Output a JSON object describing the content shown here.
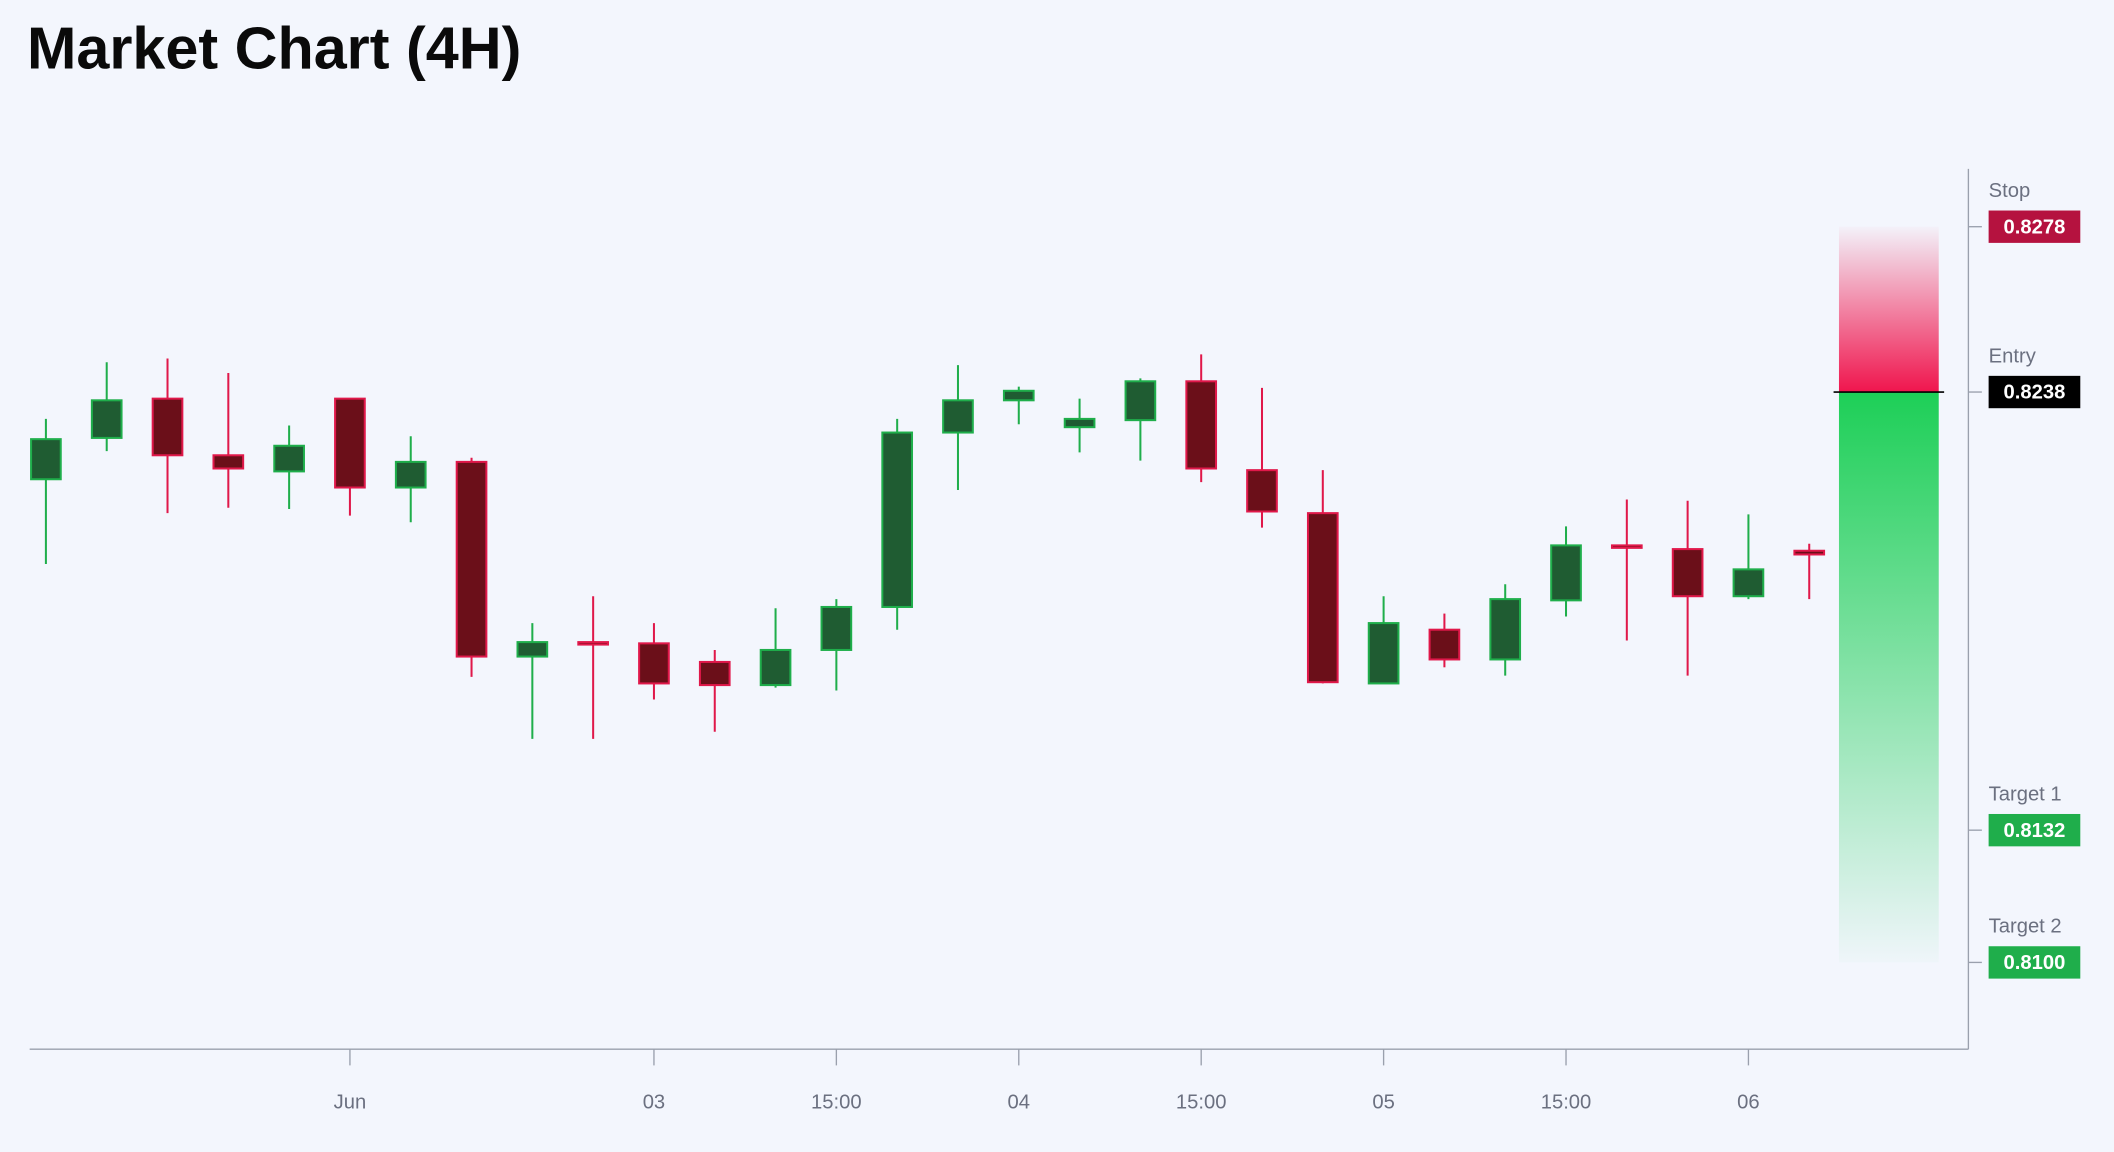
{
  "chart_data": {
    "type": "candlestick",
    "title": "Market Chart (4H)",
    "categories": [
      null,
      null,
      null,
      null,
      null,
      "Jun",
      null,
      null,
      null,
      null,
      "03",
      null,
      null,
      "15:00",
      null,
      null,
      "04",
      null,
      null,
      "15:00",
      null,
      null,
      "05",
      null,
      null,
      "15:00",
      null,
      null,
      "06",
      null
    ],
    "open": [
      0.82169,
      0.82269,
      0.82364,
      0.82227,
      0.82188,
      0.82364,
      0.82149,
      0.82211,
      0.8174,
      0.81775,
      0.81772,
      0.81727,
      0.81671,
      0.81756,
      0.8186,
      0.82282,
      0.8236,
      0.82295,
      0.82312,
      0.82406,
      0.82191,
      0.82087,
      0.81675,
      0.81805,
      0.81733,
      0.81876,
      0.82009,
      0.82,
      0.81886,
      0.81996
    ],
    "high": [
      0.82315,
      0.82452,
      0.82461,
      0.82426,
      0.82299,
      0.82364,
      0.82273,
      0.82221,
      0.81821,
      0.81886,
      0.81821,
      0.81756,
      0.81857,
      0.81879,
      0.82315,
      0.82445,
      0.82393,
      0.82364,
      0.82413,
      0.82471,
      0.8239,
      0.82191,
      0.81886,
      0.81844,
      0.81915,
      0.82055,
      0.8212,
      0.82117,
      0.82084,
      0.82013
    ],
    "low": [
      0.81964,
      0.82237,
      0.82087,
      0.821,
      0.82097,
      0.82081,
      0.82065,
      0.81691,
      0.81541,
      0.81541,
      0.81636,
      0.81558,
      0.81665,
      0.81658,
      0.81805,
      0.82143,
      0.82302,
      0.82234,
      0.82214,
      0.82162,
      0.82052,
      0.81675,
      0.81675,
      0.81714,
      0.81694,
      0.81837,
      0.81779,
      0.81694,
      0.81879,
      0.81879
    ],
    "close": [
      0.82266,
      0.8236,
      0.82227,
      0.82195,
      0.8225,
      0.82149,
      0.82211,
      0.8174,
      0.81775,
      0.81769,
      0.81675,
      0.81671,
      0.81756,
      0.8186,
      0.82282,
      0.8236,
      0.82383,
      0.82315,
      0.82406,
      0.82195,
      0.82091,
      0.81678,
      0.81821,
      0.81733,
      0.81879,
      0.82009,
      0.82003,
      0.81886,
      0.81951,
      0.81987
    ],
    "up_color": "#1f5c32",
    "up_edge": "#1fae4b",
    "down_color": "#6b0f19",
    "down_edge": "#e0184a",
    "ylim": [
      0.8079,
      0.8292
    ],
    "levels": [
      {
        "name": "Stop",
        "value": 0.8278,
        "label": "0.8278",
        "color": "#b5123f"
      },
      {
        "name": "Entry",
        "value": 0.8238,
        "label": "0.8238",
        "color": "#000000"
      },
      {
        "name": "Target 1",
        "value": 0.8132,
        "label": "0.8132",
        "color": "#1fae4b"
      },
      {
        "name": "Target 2",
        "value": 0.81,
        "label": "0.8100",
        "color": "#1fae4b"
      }
    ]
  }
}
